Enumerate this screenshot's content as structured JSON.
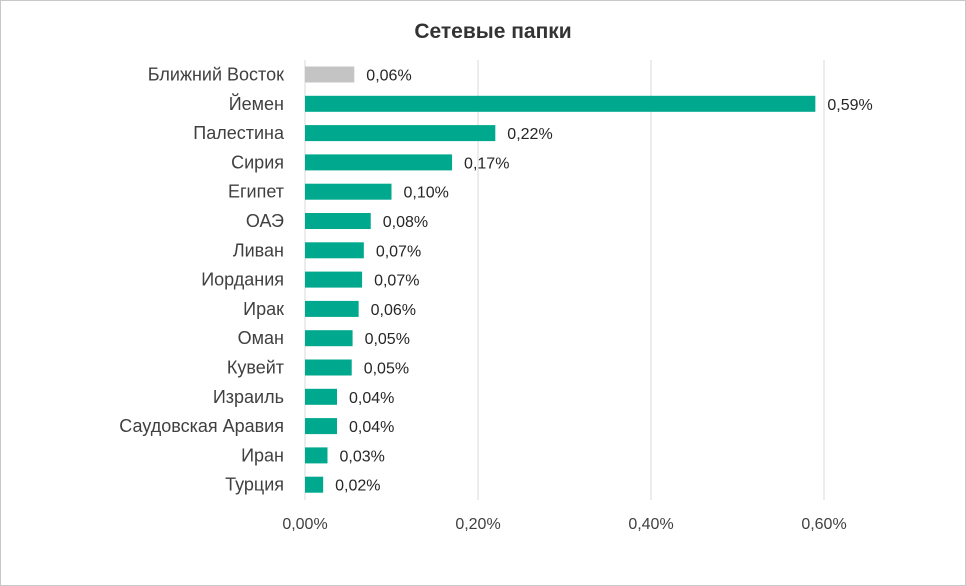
{
  "chart_data": {
    "type": "bar",
    "orientation": "horizontal",
    "title": "Сетевые папки",
    "xlabel": "",
    "ylabel": "",
    "xlim": [
      0,
      0.6
    ],
    "grid": true,
    "legend": "none",
    "categories": [
      "Ближний Восток",
      "Йемен",
      "Палестина",
      "Сирия",
      "Египет",
      "ОАЭ",
      "Ливан",
      "Иордания",
      "Ирак",
      "Оман",
      "Кувейт",
      "Израиль",
      "Саудовская Аравия",
      "Иран",
      "Турция"
    ],
    "values": [
      0.057,
      0.59,
      0.22,
      0.17,
      0.1,
      0.076,
      0.068,
      0.066,
      0.062,
      0.055,
      0.054,
      0.037,
      0.037,
      0.026,
      0.021
    ],
    "value_labels": [
      "0,06%",
      "0,59%",
      "0,22%",
      "0,17%",
      "0,10%",
      "0,08%",
      "0,07%",
      "0,07%",
      "0,06%",
      "0,05%",
      "0,05%",
      "0,04%",
      "0,04%",
      "0,03%",
      "0,02%"
    ],
    "ticks": [
      0,
      0.2,
      0.4,
      0.6
    ],
    "tick_labels": [
      "0,00%",
      "0,20%",
      "0,40%",
      "0,60%"
    ],
    "colors": {
      "highlight": "#c4c4c4",
      "bar": "#00a88e",
      "grid": "#d9d9d9"
    },
    "highlight_index": 0
  }
}
